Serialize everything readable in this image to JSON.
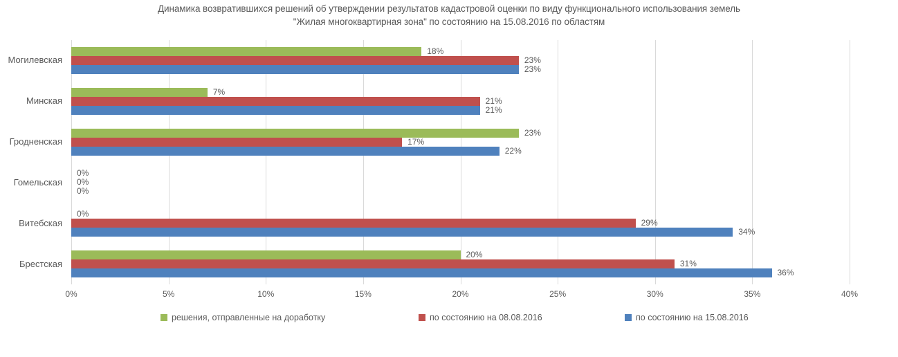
{
  "chart_data": {
    "type": "bar",
    "orientation": "horizontal",
    "title_line1": "Динамика возвратившихся решений об утверждении результатов кадастровой оценки по виду функционального использования земель",
    "title_line2": "\"Жилая многоквартирная зона\" по состоянию на 15.08.2016 по областям",
    "categories": [
      "Могилевская",
      "Минская",
      "Гродненская",
      "Гомельская",
      "Витебская",
      "Брестская"
    ],
    "series": [
      {
        "name": "решения, отправленные на доработку",
        "color": "#9bbb59",
        "values": [
          18,
          7,
          23,
          0,
          0,
          20
        ]
      },
      {
        "name": "по состоянию на 08.08.2016",
        "color": "#c0504d",
        "values": [
          23,
          21,
          17,
          0,
          29,
          31
        ]
      },
      {
        "name": "по состоянию на 15.08.2016",
        "color": "#4f81bd",
        "values": [
          23,
          21,
          22,
          0,
          34,
          36
        ]
      }
    ],
    "value_suffix": "%",
    "x_ticks": [
      "0%",
      "5%",
      "10%",
      "15%",
      "20%",
      "25%",
      "30%",
      "35%",
      "40%"
    ],
    "xlim": [
      0,
      40
    ],
    "grid": true,
    "legend_position": "bottom",
    "colors": {
      "text": "#595959",
      "gridline": "#d9d9d9",
      "background": "#ffffff"
    }
  }
}
